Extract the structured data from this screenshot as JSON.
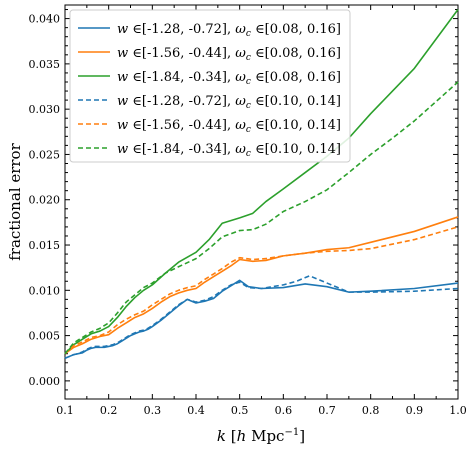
{
  "chart_data": {
    "type": "line",
    "title": "",
    "xlabel": "k [h Mpc⁻¹]",
    "ylabel": "fractional error",
    "xlim": [
      0.1,
      1.0
    ],
    "ylim": [
      -0.002,
      0.0415
    ],
    "xticks": [
      0.1,
      0.2,
      0.3,
      0.4,
      0.5,
      0.6,
      0.7,
      0.8,
      0.9,
      1.0
    ],
    "xtick_labels": [
      "0.1",
      "0.2",
      "0.3",
      "0.4",
      "0.5",
      "0.6",
      "0.7",
      "0.8",
      "0.9",
      "1.0"
    ],
    "yticks": [
      0.0,
      0.005,
      0.01,
      0.015,
      0.02,
      0.025,
      0.03,
      0.035,
      0.04
    ],
    "ytick_labels": [
      "0.000",
      "0.005",
      "0.010",
      "0.015",
      "0.020",
      "0.025",
      "0.030",
      "0.035",
      "0.040"
    ],
    "grid": false,
    "legend_position": "top-left",
    "series": [
      {
        "name": "w ∈[-1.28, -0.72], ωc ∈[0.08, 0.16]",
        "color": "#1f77b4",
        "dash": "solid",
        "x": [
          0.1,
          0.11,
          0.12,
          0.13,
          0.14,
          0.15,
          0.16,
          0.17,
          0.18,
          0.19,
          0.2,
          0.21,
          0.22,
          0.23,
          0.24,
          0.25,
          0.26,
          0.27,
          0.28,
          0.29,
          0.3,
          0.32,
          0.34,
          0.36,
          0.38,
          0.4,
          0.42,
          0.44,
          0.46,
          0.48,
          0.5,
          0.52,
          0.55,
          0.6,
          0.65,
          0.7,
          0.75,
          0.8,
          0.9,
          1.0
        ],
        "y": [
          0.0025,
          0.0027,
          0.0029,
          0.003,
          0.0031,
          0.0034,
          0.0036,
          0.0037,
          0.0037,
          0.0037,
          0.0038,
          0.0039,
          0.0041,
          0.0044,
          0.0047,
          0.005,
          0.0052,
          0.0054,
          0.0055,
          0.0057,
          0.006,
          0.0067,
          0.0075,
          0.0083,
          0.009,
          0.0086,
          0.0088,
          0.0091,
          0.0099,
          0.0105,
          0.0111,
          0.0104,
          0.0102,
          0.0103,
          0.0107,
          0.0104,
          0.0098,
          0.0099,
          0.0102,
          0.0108
        ]
      },
      {
        "name": "w ∈[-1.56, -0.44], ωc ∈[0.08, 0.16]",
        "color": "#ff7f0e",
        "dash": "solid",
        "x": [
          0.1,
          0.12,
          0.14,
          0.16,
          0.18,
          0.2,
          0.22,
          0.24,
          0.26,
          0.28,
          0.3,
          0.32,
          0.34,
          0.36,
          0.38,
          0.4,
          0.42,
          0.44,
          0.46,
          0.48,
          0.5,
          0.53,
          0.56,
          0.6,
          0.65,
          0.7,
          0.75,
          0.8,
          0.9,
          1.0
        ],
        "y": [
          0.003,
          0.0037,
          0.0041,
          0.0046,
          0.0049,
          0.0051,
          0.0058,
          0.0064,
          0.007,
          0.0074,
          0.008,
          0.0087,
          0.0093,
          0.0097,
          0.01,
          0.0102,
          0.0109,
          0.0115,
          0.0121,
          0.0127,
          0.0134,
          0.0132,
          0.0133,
          0.0138,
          0.0141,
          0.0145,
          0.0147,
          0.0153,
          0.0165,
          0.0181
        ]
      },
      {
        "name": "w ∈[-1.84, -0.34], ωc ∈[0.08, 0.16]",
        "color": "#2ca02c",
        "dash": "solid",
        "x": [
          0.1,
          0.12,
          0.14,
          0.16,
          0.18,
          0.2,
          0.22,
          0.24,
          0.26,
          0.28,
          0.3,
          0.33,
          0.36,
          0.4,
          0.43,
          0.46,
          0.5,
          0.53,
          0.56,
          0.6,
          0.65,
          0.7,
          0.75,
          0.8,
          0.85,
          0.9,
          1.0
        ],
        "y": [
          0.003,
          0.004,
          0.0046,
          0.0052,
          0.0055,
          0.006,
          0.007,
          0.0082,
          0.0092,
          0.01,
          0.0106,
          0.0119,
          0.0131,
          0.0142,
          0.0156,
          0.0174,
          0.018,
          0.0185,
          0.0198,
          0.0212,
          0.023,
          0.0248,
          0.0268,
          0.0295,
          0.032,
          0.0345,
          0.041
        ]
      },
      {
        "name": "w ∈[-1.28, -0.72], ωc ∈[0.10, 0.14]",
        "color": "#1f77b4",
        "dash": "dashed",
        "x": [
          0.1,
          0.11,
          0.12,
          0.13,
          0.14,
          0.15,
          0.16,
          0.17,
          0.18,
          0.19,
          0.2,
          0.21,
          0.22,
          0.23,
          0.24,
          0.25,
          0.26,
          0.27,
          0.28,
          0.29,
          0.3,
          0.32,
          0.34,
          0.36,
          0.38,
          0.4,
          0.42,
          0.44,
          0.46,
          0.48,
          0.5,
          0.52,
          0.55,
          0.6,
          0.63,
          0.66,
          0.7,
          0.75,
          0.8,
          0.9,
          1.0
        ],
        "y": [
          0.0025,
          0.0027,
          0.0029,
          0.003,
          0.0032,
          0.0035,
          0.0037,
          0.0038,
          0.0038,
          0.0038,
          0.0039,
          0.004,
          0.0042,
          0.0045,
          0.0048,
          0.0051,
          0.0053,
          0.0055,
          0.0056,
          0.0058,
          0.0061,
          0.0068,
          0.0076,
          0.0084,
          0.009,
          0.0087,
          0.0089,
          0.0093,
          0.01,
          0.0106,
          0.0109,
          0.0103,
          0.0102,
          0.0106,
          0.011,
          0.0116,
          0.0108,
          0.0098,
          0.0098,
          0.0099,
          0.0102
        ]
      },
      {
        "name": "w ∈[-1.56, -0.44], ωc ∈[0.10, 0.14]",
        "color": "#ff7f0e",
        "dash": "dashed",
        "x": [
          0.1,
          0.12,
          0.14,
          0.16,
          0.18,
          0.2,
          0.22,
          0.24,
          0.26,
          0.28,
          0.3,
          0.32,
          0.34,
          0.36,
          0.38,
          0.4,
          0.42,
          0.44,
          0.46,
          0.48,
          0.5,
          0.53,
          0.56,
          0.6,
          0.65,
          0.7,
          0.75,
          0.8,
          0.9,
          1.0
        ],
        "y": [
          0.003,
          0.0039,
          0.0043,
          0.0048,
          0.005,
          0.0054,
          0.0062,
          0.0068,
          0.0073,
          0.0077,
          0.0084,
          0.009,
          0.0096,
          0.01,
          0.0103,
          0.0105,
          0.0112,
          0.0118,
          0.0124,
          0.0131,
          0.0136,
          0.0134,
          0.0135,
          0.0138,
          0.0141,
          0.0143,
          0.0144,
          0.0146,
          0.0156,
          0.017
        ]
      },
      {
        "name": "w ∈[-1.84, -0.34], ωc ∈[0.10, 0.14]",
        "color": "#2ca02c",
        "dash": "dashed",
        "x": [
          0.1,
          0.12,
          0.14,
          0.16,
          0.18,
          0.2,
          0.22,
          0.24,
          0.26,
          0.28,
          0.3,
          0.33,
          0.36,
          0.4,
          0.43,
          0.46,
          0.5,
          0.53,
          0.56,
          0.6,
          0.65,
          0.7,
          0.75,
          0.8,
          0.85,
          0.9,
          1.0
        ],
        "y": [
          0.003,
          0.0042,
          0.0048,
          0.0054,
          0.0058,
          0.0064,
          0.0075,
          0.0087,
          0.0095,
          0.0103,
          0.0108,
          0.0119,
          0.0126,
          0.0135,
          0.0146,
          0.0159,
          0.0166,
          0.0167,
          0.0173,
          0.0187,
          0.0198,
          0.0211,
          0.023,
          0.025,
          0.0268,
          0.0287,
          0.033
        ]
      }
    ],
    "legend": [
      {
        "var": "w",
        "range1": "[-1.28, -0.72]",
        "sym": "ω",
        "sub": "c",
        "range2": "[0.08, 0.16]"
      },
      {
        "var": "w",
        "range1": "[-1.56, -0.44]",
        "sym": "ω",
        "sub": "c",
        "range2": "[0.08, 0.16]"
      },
      {
        "var": "w",
        "range1": "[-1.84, -0.34]",
        "sym": "ω",
        "sub": "c",
        "range2": "[0.08, 0.16]"
      },
      {
        "var": "w",
        "range1": "[-1.28, -0.72]",
        "sym": "ω",
        "sub": "c",
        "range2": "[0.10, 0.14]"
      },
      {
        "var": "w",
        "range1": "[-1.56, -0.44]",
        "sym": "ω",
        "sub": "c",
        "range2": "[0.10, 0.14]"
      },
      {
        "var": "w",
        "range1": "[-1.84, -0.34]",
        "sym": "ω",
        "sub": "c",
        "range2": "[0.10, 0.14]"
      }
    ]
  }
}
